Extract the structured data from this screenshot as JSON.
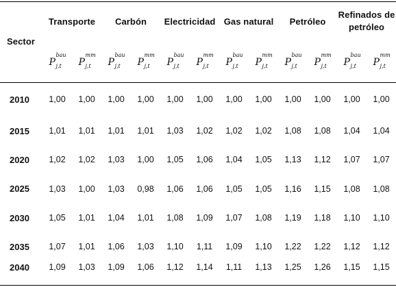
{
  "table": {
    "sector_label": "Sector",
    "groups": [
      "Transporte",
      "Carbón",
      "Electricidad",
      "Gas natural",
      "Petróleo",
      "Refinados de\npetróleo"
    ],
    "subheader": {
      "base": "P",
      "sub": "j,t",
      "sup_bau": "bau",
      "sup_mm": "mm"
    },
    "rows": [
      {
        "year": "2010",
        "values": [
          "1,00",
          "1,00",
          "1,00",
          "1,00",
          "1,00",
          "1,00",
          "1,00",
          "1,00",
          "1,00",
          "1,00",
          "1,00",
          "1,00"
        ]
      },
      {
        "year": "2015",
        "values": [
          "1,01",
          "1,01",
          "1,01",
          "1,01",
          "1,03",
          "1,02",
          "1,02",
          "1,02",
          "1,08",
          "1,08",
          "1,04",
          "1,04"
        ]
      },
      {
        "year": "2020",
        "values": [
          "1,02",
          "1,02",
          "1,03",
          "1,00",
          "1,05",
          "1,06",
          "1,04",
          "1,05",
          "1,13",
          "1,12",
          "1,07",
          "1,07"
        ]
      },
      {
        "year": "2025",
        "values": [
          "1,03",
          "1,00",
          "1,03",
          "0,98",
          "1,06",
          "1,06",
          "1,05",
          "1,05",
          "1,16",
          "1,15",
          "1,08",
          "1,08"
        ]
      },
      {
        "year": "2030",
        "values": [
          "1,05",
          "1,01",
          "1,04",
          "1,01",
          "1,08",
          "1,09",
          "1,07",
          "1,08",
          "1,19",
          "1,18",
          "1,10",
          "1,10"
        ]
      },
      {
        "year": "2035",
        "values": [
          "1,07",
          "1,01",
          "1,06",
          "1,03",
          "1,10",
          "1,11",
          "1,09",
          "1,10",
          "1,22",
          "1,22",
          "1,12",
          "1,12"
        ]
      },
      {
        "year": "2040",
        "values": [
          "1,09",
          "1,03",
          "1,09",
          "1,06",
          "1,12",
          "1,14",
          "1,11",
          "1,13",
          "1,25",
          "1,26",
          "1,15",
          "1,15"
        ]
      }
    ]
  }
}
